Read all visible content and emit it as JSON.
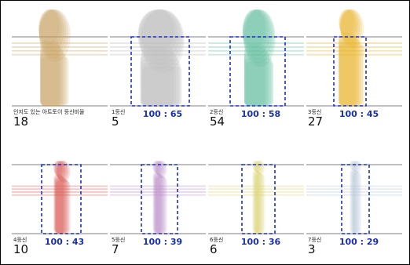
{
  "panels": [
    {
      "label": "인지도 있는 아트토이 등신비율",
      "count": "18",
      "color": "#c9a060"
    },
    {
      "label": "1등신",
      "count": "5",
      "ratio": "100 : 65",
      "color": "#b5b5b5"
    },
    {
      "label": "2등신",
      "count": "54",
      "ratio": "100 : 58",
      "color": "#5cbf9a"
    },
    {
      "label": "3등신",
      "count": "27",
      "ratio": "100 : 45",
      "color": "#e8b020"
    },
    {
      "label": "4등신",
      "count": "10",
      "ratio": "100 : 43",
      "color": "#d9534f"
    },
    {
      "label": "5등신",
      "count": "7",
      "ratio": "100 : 39",
      "color": "#b98ac9"
    },
    {
      "label": "6등신",
      "count": "6",
      "ratio": "100 : 36",
      "color": "#d9d46a"
    },
    {
      "label": "7등신",
      "count": "3",
      "ratio": "100 : 29",
      "color": "#b8c8d8"
    }
  ]
}
